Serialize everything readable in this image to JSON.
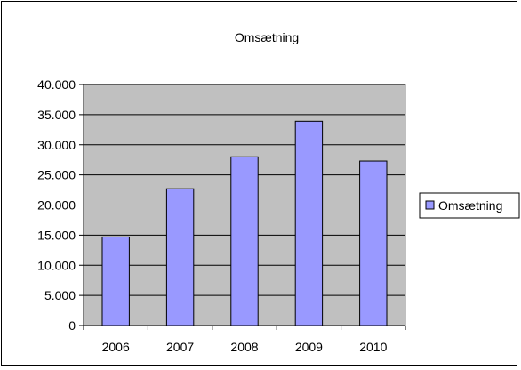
{
  "chart_data": {
    "type": "bar",
    "title": "Omsætning",
    "categories": [
      "2006",
      "2007",
      "2008",
      "2009",
      "2010"
    ],
    "series": [
      {
        "name": "Omsætning",
        "values": [
          14700,
          22700,
          28000,
          33900,
          27300
        ]
      }
    ],
    "ylim": [
      0,
      40000
    ],
    "yticks": [
      0,
      5000,
      10000,
      15000,
      20000,
      25000,
      30000,
      35000,
      40000
    ],
    "ytick_labels": [
      "0",
      "5.000",
      "10.000",
      "15.000",
      "20.000",
      "25.000",
      "30.000",
      "35.000",
      "40.000"
    ],
    "grid": true,
    "legend_position": "right",
    "colors": {
      "plot_background": "#c0c0c0",
      "bar_fill": "#9999ff",
      "bar_stroke": "#000000",
      "gridline": "#000000"
    }
  }
}
